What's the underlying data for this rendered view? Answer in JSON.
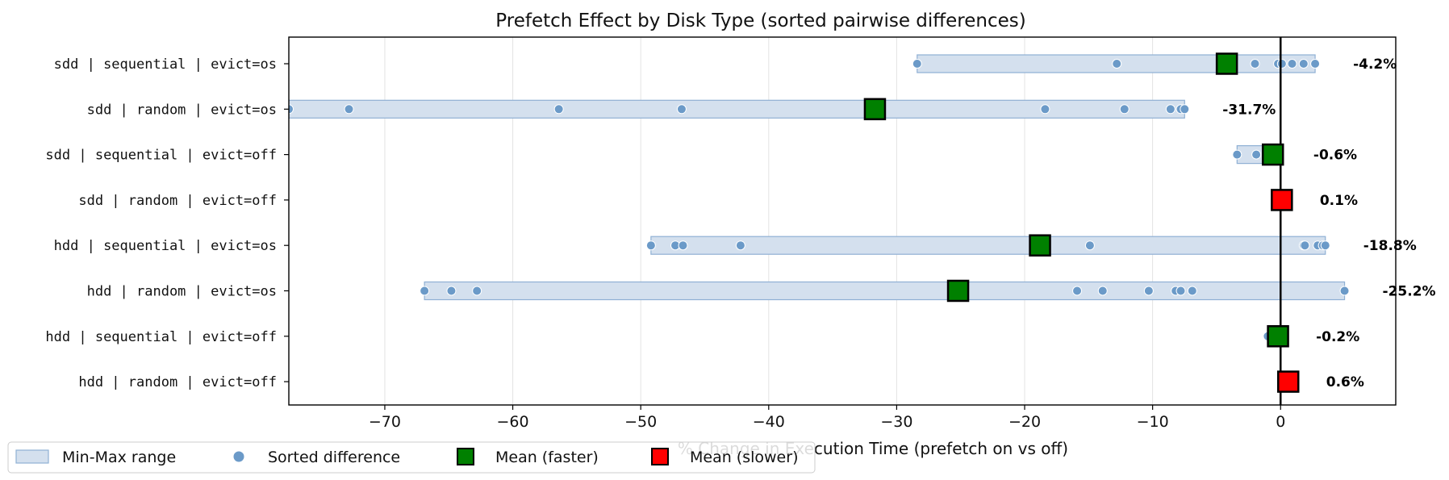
{
  "chart_data": {
    "type": "scatter",
    "title": "Prefetch Effect by Disk Type (sorted pairwise differences)",
    "xlabel": "% Change in Execution Time (prefetch on vs off)",
    "ylabel": "",
    "xlim": [
      -77.5,
      9
    ],
    "xticks": [
      -70,
      -60,
      -50,
      -40,
      -30,
      -20,
      -10,
      0
    ],
    "xtick_labels": [
      "−70",
      "−60",
      "−50",
      "−40",
      "−30",
      "−20",
      "−10",
      "0"
    ],
    "grid": "x",
    "reference_line": 0,
    "legend_position": "lower-left",
    "legend": [
      {
        "key": "range",
        "label": "Min-Max range"
      },
      {
        "key": "point",
        "label": "Sorted difference"
      },
      {
        "key": "faster",
        "label": "Mean (faster)"
      },
      {
        "key": "slower",
        "label": "Mean (slower)"
      }
    ],
    "colors": {
      "range_fill": "#d4e0ee",
      "range_edge": "#8fb0d4",
      "point": "#6b9ac8",
      "faster": "#008000",
      "slower": "#ff0000",
      "reference": "#000000",
      "grid": "#e3e3e3"
    },
    "rows": [
      {
        "label": "sdd | sequential | evict=os",
        "min": -28.4,
        "max": 2.7,
        "mean": -4.2,
        "mean_label": "-4.2%",
        "status": "faster",
        "points": [
          -28.4,
          -12.8,
          -4.6,
          -2.0,
          -0.2,
          0.1,
          0.9,
          1.8,
          2.7
        ]
      },
      {
        "label": "sdd | random | evict=os",
        "min": -77.5,
        "max": -7.5,
        "mean": -31.7,
        "mean_label": "-31.7%",
        "status": "faster",
        "points": [
          -77.5,
          -72.8,
          -56.4,
          -46.8,
          -18.4,
          -12.2,
          -8.6,
          -7.8,
          -7.5
        ]
      },
      {
        "label": "sdd | sequential | evict=off",
        "min": -3.4,
        "max": -0.4,
        "mean": -0.6,
        "mean_label": "-0.6%",
        "status": "faster",
        "points": [
          -3.4,
          -1.9,
          -0.4
        ]
      },
      {
        "label": "sdd | random | evict=off",
        "min": 0.1,
        "max": 0.1,
        "mean": 0.1,
        "mean_label": "0.1%",
        "status": "slower",
        "points": [
          0.1
        ]
      },
      {
        "label": "hdd | sequential | evict=os",
        "min": -49.2,
        "max": 3.5,
        "mean": -18.8,
        "mean_label": "-18.8%",
        "status": "faster",
        "points": [
          -49.2,
          -47.3,
          -46.7,
          -42.2,
          -14.9,
          1.8,
          1.9,
          2.9,
          3.3,
          3.5
        ]
      },
      {
        "label": "hdd | random | evict=os",
        "min": -66.9,
        "max": 5.0,
        "mean": -25.2,
        "mean_label": "-25.2%",
        "status": "faster",
        "points": [
          -66.9,
          -64.8,
          -62.8,
          -15.9,
          -13.9,
          -10.3,
          -8.2,
          -7.8,
          -6.9,
          5.0
        ]
      },
      {
        "label": "hdd | sequential | evict=off",
        "min": -1.0,
        "max": -0.2,
        "mean": -0.2,
        "mean_label": "-0.2%",
        "status": "faster",
        "points": [
          -1.0
        ]
      },
      {
        "label": "hdd | random | evict=off",
        "min": 0.6,
        "max": 0.6,
        "mean": 0.6,
        "mean_label": "0.6%",
        "status": "slower",
        "points": [
          0.6
        ]
      }
    ]
  }
}
